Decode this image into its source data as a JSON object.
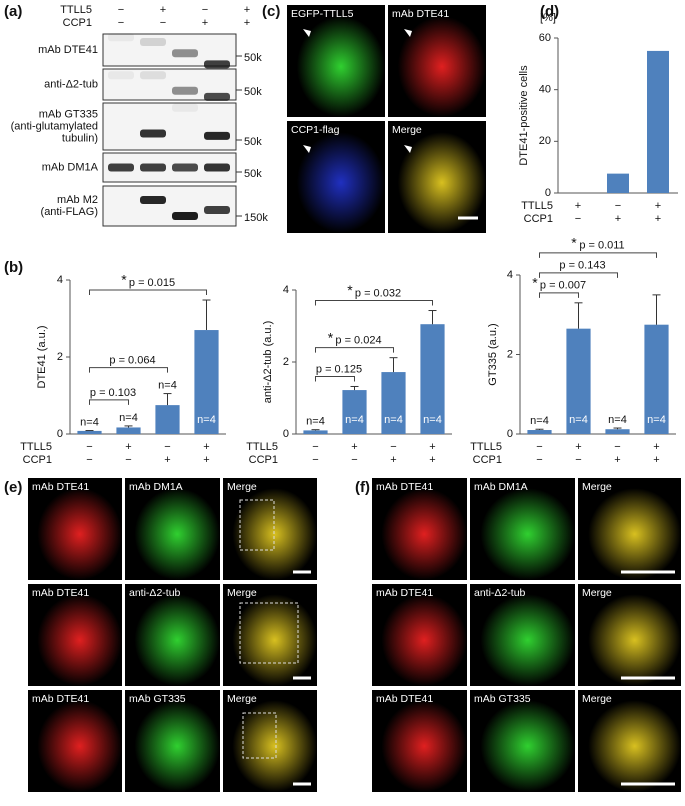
{
  "panels": {
    "a": {
      "label": "(a)",
      "conditions": [
        {
          "name": "TTLL5",
          "signs": [
            "−",
            "+",
            "−",
            "+"
          ]
        },
        {
          "name": "CCP1",
          "signs": [
            "−",
            "−",
            "+",
            "+"
          ]
        }
      ],
      "rows": [
        {
          "lines": [
            "mAb DTE41"
          ],
          "marker": "50k"
        },
        {
          "lines": [
            "anti-Δ2-tub"
          ],
          "marker": "50k"
        },
        {
          "lines": [
            "mAb GT335",
            "(anti-glutamylated",
            "tubulin)"
          ],
          "marker": "50k"
        },
        {
          "lines": [
            "mAb DM1A"
          ],
          "marker": "50k"
        },
        {
          "lines": [
            "mAb M2",
            "(anti-FLAG)"
          ],
          "marker": "150k"
        }
      ]
    },
    "c": {
      "label": "(c)",
      "images": [
        "EGFP-TTLL5",
        "mAb DTE41",
        "CCP1-flag",
        "Merge"
      ]
    },
    "b": {
      "label": "(b)"
    },
    "e": {
      "label": "(e)",
      "rows": [
        [
          "mAb DTE41",
          "mAb DM1A",
          "Merge"
        ],
        [
          "mAb DTE41",
          "anti-Δ2-tub",
          "Merge"
        ],
        [
          "mAb DTE41",
          "mAb GT335",
          "Merge"
        ]
      ]
    },
    "f": {
      "label": "(f)",
      "rows": [
        [
          "mAb DTE41",
          "mAb DM1A",
          "Merge"
        ],
        [
          "mAb DTE41",
          "anti-Δ2-tub",
          "Merge"
        ],
        [
          "mAb DTE41",
          "mAb GT335",
          "Merge"
        ]
      ]
    }
  },
  "chart_data": [
    {
      "type": "bar",
      "label": "(d)",
      "unit": "[%]",
      "ylabel": "DTE41-positive cells",
      "color": "#4f81bd",
      "ylim": [
        0,
        60
      ],
      "yticks": [
        0,
        20,
        40,
        60
      ],
      "conditions": [
        {
          "name": "TTLL5",
          "signs": [
            "+",
            "−",
            "+"
          ]
        },
        {
          "name": "CCP1",
          "signs": [
            "−",
            "+",
            "+"
          ]
        }
      ],
      "values": [
        0,
        7.5,
        55
      ]
    },
    {
      "type": "bar",
      "ylabel": "DTE41 (a.u.)",
      "color": "#4f81bd",
      "ylim": [
        0,
        4
      ],
      "yticks": [
        0,
        2,
        4
      ],
      "conditions": [
        {
          "name": "TTLL5",
          "signs": [
            "−",
            "+",
            "−",
            "+"
          ]
        },
        {
          "name": "CCP1",
          "signs": [
            "−",
            "−",
            "+",
            "+"
          ]
        }
      ],
      "values": [
        0.08,
        0.17,
        0.75,
        2.7
      ],
      "errors": [
        0.01,
        0.04,
        0.3,
        0.78
      ],
      "n_labels": [
        "n=4",
        "n=4",
        "n=4",
        "n=4"
      ],
      "comparisons": [
        {
          "between": [
            0,
            1
          ],
          "text": "p = 0.103"
        },
        {
          "between": [
            0,
            2
          ],
          "text": "p = 0.064"
        },
        {
          "between": [
            0,
            3
          ],
          "star": "*",
          "text": "p = 0.015"
        }
      ]
    },
    {
      "type": "bar",
      "ylabel": "anti-Δ2-tub (a.u.)",
      "color": "#4f81bd",
      "ylim": [
        0,
        4
      ],
      "yticks": [
        0,
        2,
        4
      ],
      "conditions": [
        {
          "name": "TTLL5",
          "signs": [
            "−",
            "+",
            "−",
            "+"
          ]
        },
        {
          "name": "CCP1",
          "signs": [
            "−",
            "−",
            "+",
            "+"
          ]
        }
      ],
      "values": [
        0.1,
        1.22,
        1.72,
        3.05
      ],
      "errors": [
        0.02,
        0.1,
        0.4,
        0.38
      ],
      "n_labels": [
        "n=4",
        "n=4",
        "n=4",
        "n=4"
      ],
      "comparisons": [
        {
          "between": [
            0,
            1
          ],
          "text": "p = 0.125"
        },
        {
          "between": [
            0,
            2
          ],
          "star": "*",
          "text": "p = 0.024"
        },
        {
          "between": [
            0,
            3
          ],
          "star": "*",
          "text": "p = 0.032"
        }
      ]
    },
    {
      "type": "bar",
      "ylabel": "GT335 (a.u.)",
      "color": "#4f81bd",
      "ylim": [
        0,
        4
      ],
      "yticks": [
        0,
        2,
        4
      ],
      "conditions": [
        {
          "name": "TTLL5",
          "signs": [
            "−",
            "+",
            "−",
            "+"
          ]
        },
        {
          "name": "CCP1",
          "signs": [
            "−",
            "−",
            "+",
            "+"
          ]
        }
      ],
      "values": [
        0.1,
        2.65,
        0.12,
        2.75
      ],
      "errors": [
        0.02,
        0.65,
        0.03,
        0.75
      ],
      "n_labels": [
        "n=4",
        "n=4",
        "n=4",
        "n=4"
      ],
      "comparisons": [
        {
          "between": [
            0,
            1
          ],
          "star": "*",
          "text": "p = 0.007"
        },
        {
          "between": [
            0,
            2
          ],
          "text": "p = 0.143"
        },
        {
          "between": [
            0,
            3
          ],
          "star": "*",
          "text": "p = 0.011"
        }
      ]
    }
  ]
}
